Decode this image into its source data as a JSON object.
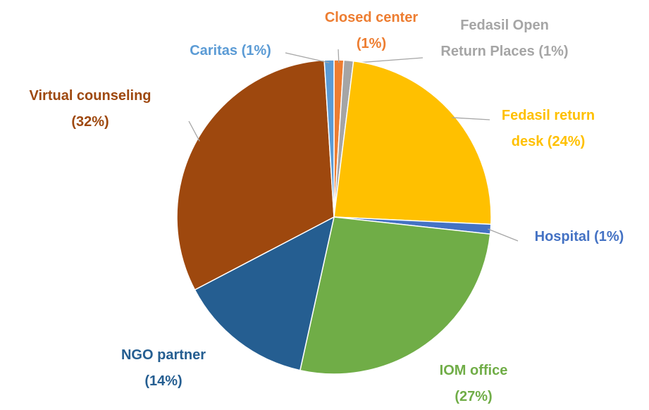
{
  "chart_data": {
    "type": "pie",
    "categories": [
      "Closed center",
      "Fedasil Open Return Places",
      "Fedasil return desk",
      "Hospital",
      "IOM office",
      "NGO partner",
      "Virtual counseling",
      "Caritas"
    ],
    "values": [
      1,
      1,
      24,
      1,
      27,
      14,
      32,
      1
    ],
    "value_labels": [
      "(1%)",
      "(1%)",
      "(24%)",
      "(1%)",
      "(27%)",
      "(14%)",
      "(32%)",
      "(1%)"
    ],
    "colors": [
      "#ED7D31",
      "#A5A5A5",
      "#FFC000",
      "#4472C4",
      "#70AD47",
      "#255E91",
      "#9E480E",
      "#5B9BD5"
    ]
  }
}
